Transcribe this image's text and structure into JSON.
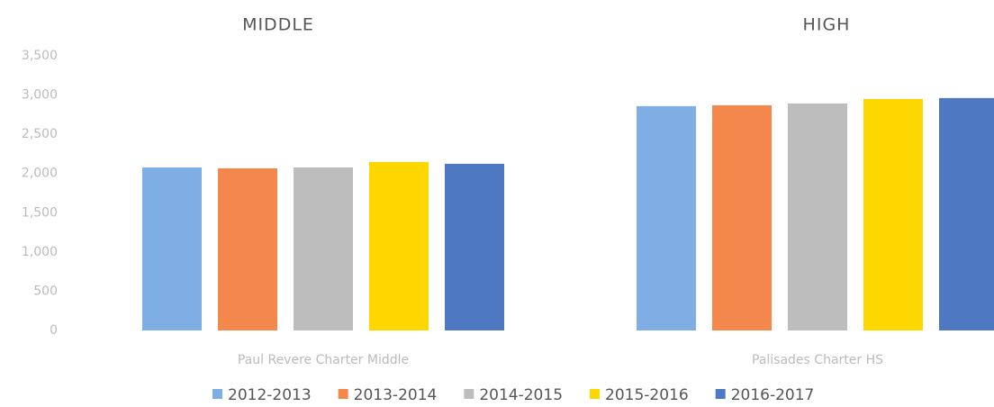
{
  "chart_data": [
    {
      "type": "bar",
      "title": "MIDDLE",
      "categories": [
        "Paul Revere Charter Middle"
      ],
      "series": [
        {
          "name": "2012-2013",
          "color": "#7eaee3",
          "values": [
            2078
          ]
        },
        {
          "name": "2013-2014",
          "color": "#f4874b",
          "values": [
            2066
          ]
        },
        {
          "name": "2014-2015",
          "color": "#bdbdbd",
          "values": [
            2078
          ]
        },
        {
          "name": "2015-2016",
          "color": "#ffd700",
          "values": [
            2147
          ]
        },
        {
          "name": "2016-2017",
          "color": "#4f78c2",
          "values": [
            2124
          ]
        }
      ],
      "ylim": [
        0,
        3500
      ],
      "yticks": [
        0,
        500,
        {
          "value": 1000,
          "label": "1,000"
        },
        {
          "value": 1500,
          "label": "1,500"
        },
        {
          "value": 2000,
          "label": "2,000"
        },
        {
          "value": 2500,
          "label": "2,500"
        },
        {
          "value": 3000,
          "label": "3,000"
        },
        {
          "value": 3500,
          "label": "3,500"
        }
      ],
      "legend": "bottom"
    },
    {
      "type": "bar",
      "title": "HIGH",
      "categories": [
        "Palisades Charter HS"
      ],
      "series": [
        {
          "color": "#7eaee3",
          "values": [
            2859
          ]
        },
        {
          "color": "#f4874b",
          "values": [
            2870
          ]
        },
        {
          "color": "#bdbdbd",
          "values": [
            2893
          ]
        },
        {
          "color": "#ffd700",
          "values": [
            2950
          ]
        },
        {
          "color": "#4f78c2",
          "values": [
            2962
          ]
        }
      ],
      "ylim": [
        0,
        3500
      ]
    }
  ]
}
